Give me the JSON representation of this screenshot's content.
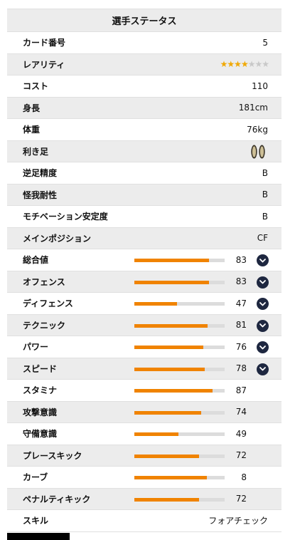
{
  "header": {
    "title": "選手ステータス"
  },
  "info": [
    {
      "label": "カード番号",
      "value": "5"
    },
    {
      "label": "レアリティ",
      "rarity_stars_filled": 4,
      "rarity_stars_total": 7
    },
    {
      "label": "コスト",
      "value": "110"
    },
    {
      "label": "身長",
      "value": "181cm"
    },
    {
      "label": "体重",
      "value": "76kg"
    },
    {
      "label": "利き足",
      "icon": "both-feet-icon"
    },
    {
      "label": "逆足精度",
      "value": "B"
    },
    {
      "label": "怪我耐性",
      "value": "B"
    },
    {
      "label": "モチベーション安定度",
      "value": "B"
    },
    {
      "label": "メインポジション",
      "value": "CF"
    }
  ],
  "stats": [
    {
      "label": "総合値",
      "value": 83,
      "expandable": true
    },
    {
      "label": "オフェンス",
      "value": 83,
      "expandable": true
    },
    {
      "label": "ディフェンス",
      "value": 47,
      "expandable": true
    },
    {
      "label": "テクニック",
      "value": 81,
      "expandable": true
    },
    {
      "label": "パワー",
      "value": 76,
      "expandable": true
    },
    {
      "label": "スピード",
      "value": 78,
      "expandable": true
    },
    {
      "label": "スタミナ",
      "value": 87,
      "expandable": false
    },
    {
      "label": "攻撃意識",
      "value": 74,
      "expandable": false
    },
    {
      "label": "守備意識",
      "value": 49,
      "expandable": false
    },
    {
      "label": "プレースキック",
      "value": 72,
      "expandable": false
    },
    {
      "label": "カーブ",
      "value": 8,
      "expandable": false,
      "bar_fill_percent": 80
    },
    {
      "label": "ペナルティキック",
      "value": 72,
      "expandable": false
    }
  ],
  "skill": {
    "label": "スキル",
    "value": "フォアチェック"
  },
  "colors": {
    "bar_fill": "#f08300",
    "bar_track": "#dcdcdc",
    "expand_button": "#1e2740",
    "star_on": "#f0a800",
    "star_off": "#c8c8c8"
  }
}
